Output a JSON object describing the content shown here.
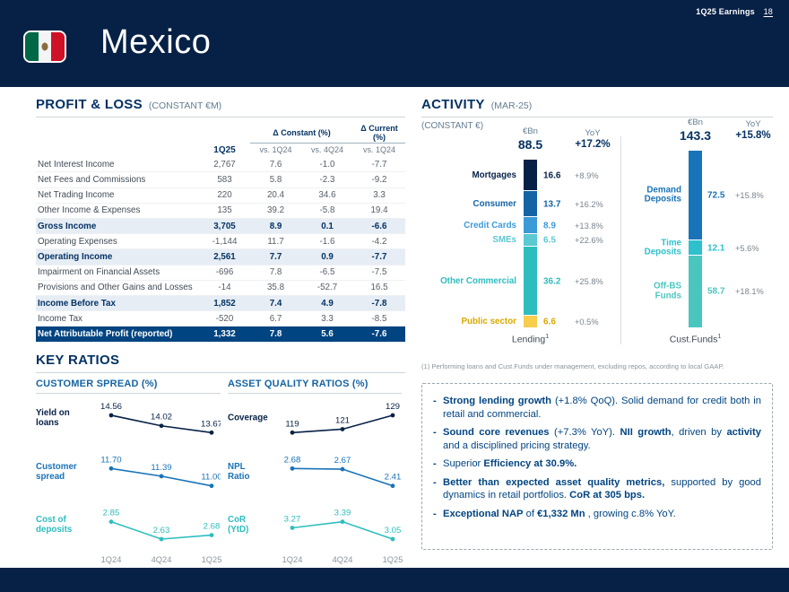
{
  "header": {
    "deck_title": "1Q25 Earnings",
    "page_number": "18",
    "title": "Mexico"
  },
  "pnl": {
    "title": "PROFIT & LOSS",
    "subtitle": "(CONSTANT €M)",
    "group_constant": "Δ Constant (%)",
    "group_current": "Δ Current (%)",
    "columns": [
      "1Q25",
      "vs. 1Q24",
      "vs. 4Q24",
      "vs. 1Q24"
    ],
    "rows": [
      {
        "label": "Net Interest Income",
        "values": [
          "2,767",
          "7.6",
          "-1.0",
          "-7.7"
        ],
        "style": "normal"
      },
      {
        "label": "Net Fees and Commissions",
        "values": [
          "583",
          "5.8",
          "-2.3",
          "-9.2"
        ],
        "style": "normal"
      },
      {
        "label": "Net Trading Income",
        "values": [
          "220",
          "20.4",
          "34.6",
          "3.3"
        ],
        "style": "normal"
      },
      {
        "label": "Other Income & Expenses",
        "values": [
          "135",
          "39.2",
          "-5.8",
          "19.4"
        ],
        "style": "normal"
      },
      {
        "label": "Gross Income",
        "values": [
          "3,705",
          "8.9",
          "0.1",
          "-6.6"
        ],
        "style": "subtotal"
      },
      {
        "label": "Operating Expenses",
        "values": [
          "-1,144",
          "11.7",
          "-1.6",
          "-4.2"
        ],
        "style": "normal"
      },
      {
        "label": "Operating Income",
        "values": [
          "2,561",
          "7.7",
          "0.9",
          "-7.7"
        ],
        "style": "subtotal"
      },
      {
        "label": "Impairment on Financial Assets",
        "values": [
          "-696",
          "7.8",
          "-6.5",
          "-7.5"
        ],
        "style": "normal"
      },
      {
        "label": "Provisions and Other Gains and Losses",
        "values": [
          "-14",
          "35.8",
          "-52.7",
          "16.5"
        ],
        "style": "normal"
      },
      {
        "label": "Income Before Tax",
        "values": [
          "1,852",
          "7.4",
          "4.9",
          "-7.8"
        ],
        "style": "subtotal"
      },
      {
        "label": "Income Tax",
        "values": [
          "-520",
          "6.7",
          "3.3",
          "-8.5"
        ],
        "style": "normal"
      },
      {
        "label": "Net Attributable Profit (reported)",
        "values": [
          "1,332",
          "7.8",
          "5.6",
          "-7.6"
        ],
        "style": "total"
      }
    ]
  },
  "activity": {
    "title": "ACTIVITY",
    "subtitle": "(MAR-25)",
    "basis": "(CONSTANT €)",
    "footnote": "(1) Performing loans and Cust.Funds under management, excluding repos, according to local GAAP."
  },
  "key_ratios": {
    "title": "KEY RATIOS"
  },
  "chart_data": [
    {
      "type": "bar",
      "name": "lending",
      "stacked": true,
      "unit": "€Bn",
      "total": "88.5",
      "yoy_label": "YoY",
      "yoy": "+17.2%",
      "xlabel": "Lending",
      "xlabel_sup": "1",
      "segments": [
        {
          "label": "Mortgages",
          "value": "16.6",
          "yoy": "+8.9%",
          "color": "#072146"
        },
        {
          "label": "Consumer",
          "value": "13.7",
          "yoy": "+16.2%",
          "color": "#1464A5"
        },
        {
          "label": "Credit Cards",
          "value": "8.9",
          "yoy": "+13.8%",
          "color": "#3D9AD9"
        },
        {
          "label": "SMEs",
          "value": "6.5",
          "yoy": "+22.6%",
          "color": "#5BC8D2"
        },
        {
          "label": "Other Commercial",
          "value": "36.2",
          "yoy": "+25.8%",
          "color": "#2DBDBE"
        },
        {
          "label": "Public sector",
          "value": "6.6",
          "yoy": "+0.5%",
          "color": "#F6CD4C",
          "text": "#D9A900"
        }
      ]
    },
    {
      "type": "bar",
      "name": "custfunds",
      "stacked": true,
      "unit": "€Bn",
      "total": "143.3",
      "yoy_label": "YoY",
      "yoy": "+15.8%",
      "xlabel": "Cust.Funds",
      "xlabel_sup": "1",
      "segments": [
        {
          "label": "Demand Deposits",
          "value": "72.5",
          "yoy": "+15.8%",
          "color": "#1973B8"
        },
        {
          "label": "Time Deposits",
          "value": "12.1",
          "yoy": "+5.6%",
          "color": "#2DC0CD"
        },
        {
          "label": "Off-BS Funds",
          "value": "58.7",
          "yoy": "+18.1%",
          "color": "#49C6C0"
        }
      ]
    },
    {
      "type": "line",
      "name": "customer_spread",
      "title": "CUSTOMER SPREAD (%)",
      "x": [
        "1Q24",
        "4Q24",
        "1Q25"
      ],
      "series": [
        {
          "name": "Yield on loans",
          "values": [
            "14.56",
            "14.02",
            "13.67"
          ],
          "color": "#072146"
        },
        {
          "name": "Customer spread",
          "values": [
            "11.70",
            "11.39",
            "11.00"
          ],
          "color": "#1973B8"
        },
        {
          "name": "Cost of deposits",
          "values": [
            "2.85",
            "2.63",
            "2.68"
          ],
          "color": "#2DBDBE"
        }
      ]
    },
    {
      "type": "line",
      "name": "asset_quality",
      "title": "ASSET QUALITY RATIOS (%)",
      "x": [
        "1Q24",
        "4Q24",
        "1Q25"
      ],
      "series": [
        {
          "name": "Coverage",
          "values": [
            "119",
            "121",
            "129"
          ],
          "color": "#072146"
        },
        {
          "name": "NPL Ratio",
          "values": [
            "2.68",
            "2.67",
            "2.41"
          ],
          "color": "#1973B8"
        },
        {
          "name": "CoR (YtD)",
          "values": [
            "3.27",
            "3.39",
            "3.05"
          ],
          "color": "#2DBDBE"
        }
      ]
    }
  ],
  "highlights": {
    "items": [
      {
        "parts": [
          {
            "t": "Strong lending growth",
            "b": true
          },
          {
            "t": " (+1.8% QoQ).  Solid demand for credit both in retail and commercial.",
            "b": false
          }
        ]
      },
      {
        "parts": [
          {
            "t": "Sound core revenues",
            "b": true
          },
          {
            "t": " (+7.3% YoY). ",
            "b": false
          },
          {
            "t": "NII growth",
            "b": true
          },
          {
            "t": ", driven by ",
            "b": false
          },
          {
            "t": "activity",
            "b": true
          },
          {
            "t": " and a disciplined pricing strategy.",
            "b": false
          }
        ]
      },
      {
        "parts": [
          {
            "t": "Superior ",
            "b": false
          },
          {
            "t": "Efficiency at 30.9%.",
            "b": true
          }
        ]
      },
      {
        "parts": [
          {
            "t": "Better than expected asset quality metrics,",
            "b": true
          },
          {
            "t": " supported by good dynamics in retail portfolios. ",
            "b": false
          },
          {
            "t": "CoR at 305 bps.",
            "b": true
          }
        ]
      },
      {
        "parts": [
          {
            "t": "Exceptional NAP",
            "b": true
          },
          {
            "t": " of ",
            "b": false
          },
          {
            "t": "€1,332 Mn",
            "b": true
          },
          {
            "t": " , growing c.8% YoY.",
            "b": false
          }
        ]
      }
    ]
  }
}
